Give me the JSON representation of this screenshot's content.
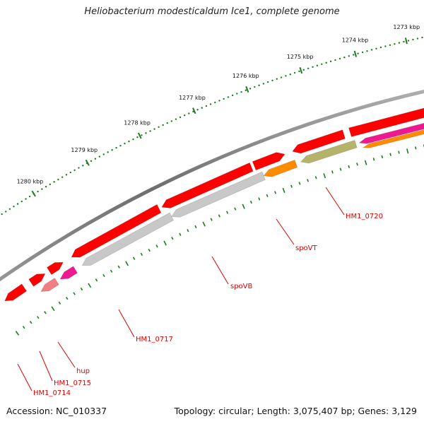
{
  "title": "Heliobacterium modesticaldum Ice1, complete genome",
  "footer": {
    "accession": "Accession: NC_010337",
    "summary": "Topology: circular; Length: 3,075,407 bp; Genes: 3,129"
  },
  "ticks": [
    {
      "label": "1273 kbp"
    },
    {
      "label": "1274 kbp"
    },
    {
      "label": "1275 kbp"
    },
    {
      "label": "1276 kbp"
    },
    {
      "label": "1277 kbp"
    },
    {
      "label": "1278 kbp"
    },
    {
      "label": "1279 kbp"
    },
    {
      "label": "1280 kbp"
    }
  ],
  "gene_labels": [
    {
      "label": "HM1_0720"
    },
    {
      "label": "spoVT"
    },
    {
      "label": "spoVB"
    },
    {
      "label": "HM1_0717"
    },
    {
      "label": "hup"
    },
    {
      "label": "HM1_0715"
    },
    {
      "label": "HM1_0714"
    }
  ],
  "colors": {
    "backbone": "#7a7a7a",
    "cds": "#ff0000",
    "olive": "#b5b36a",
    "orange": "#ff8c00",
    "gray_feature": "#c8c8c8",
    "pink": "#f01890",
    "light_red": "#f08080",
    "tick": "#1f7a1f",
    "label": "#e00000"
  }
}
